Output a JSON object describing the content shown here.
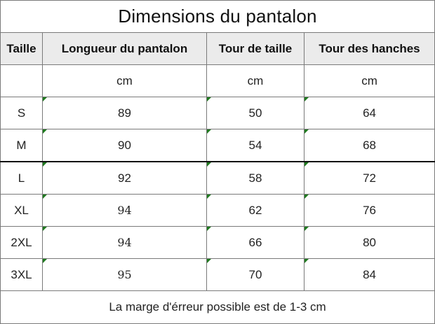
{
  "title": "Dimensions du pantalon",
  "headers": [
    "Taille",
    "Longueur du pantalon",
    "Tour de taille",
    "Tour des hanches"
  ],
  "units": [
    "",
    "cm",
    "cm",
    "cm"
  ],
  "rows": [
    [
      "S",
      "89",
      "50",
      "64"
    ],
    [
      "M",
      "90",
      "54",
      "68"
    ],
    [
      "L",
      "92",
      "58",
      "72"
    ],
    [
      "XL",
      "94",
      "62",
      "76"
    ],
    [
      "2XL",
      "94",
      "66",
      "80"
    ],
    [
      "3XL",
      "95",
      "70",
      "84"
    ]
  ],
  "footer": "La marge d'érreur possible est de 1-3 cm",
  "colors": {
    "border": "#7a7a7a",
    "header_bg": "#ebebeb",
    "marker": "#1f7a1f"
  }
}
